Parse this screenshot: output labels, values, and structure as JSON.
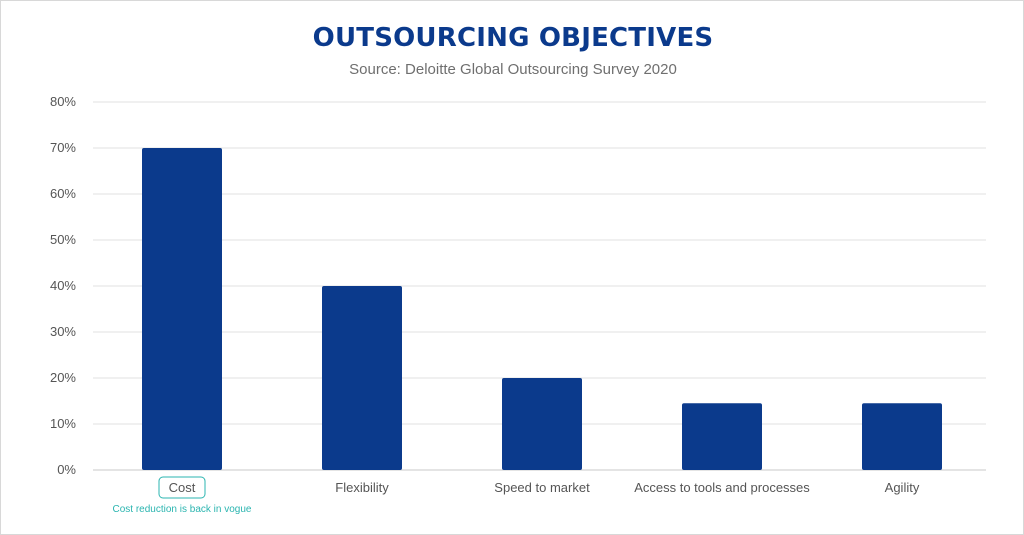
{
  "chart_data": {
    "type": "bar",
    "title": "OUTSOURCING OBJECTIVES",
    "subtitle": "Source: Deloitte Global Outsourcing Survey 2020",
    "categories": [
      "Cost",
      "Flexibility",
      "Speed to market",
      "Access to tools and processes",
      "Agility"
    ],
    "values": [
      70,
      40,
      20,
      14.5,
      14.5
    ],
    "ylim": [
      0,
      80
    ],
    "yticks": [
      0,
      10,
      20,
      30,
      40,
      50,
      60,
      70,
      80
    ],
    "ytick_labels": [
      "0%",
      "10%",
      "20%",
      "30%",
      "40%",
      "50%",
      "60%",
      "70%",
      "80%"
    ],
    "xlabel": "",
    "ylabel": "",
    "grid": true,
    "highlight": {
      "category": "Cost",
      "annotation": "Cost reduction is back in vogue"
    },
    "colors": {
      "bar": "#0b3a8c",
      "title": "#0b3a8c",
      "grid": "#e0e0e0",
      "highlight": "#2bb5b0"
    }
  }
}
